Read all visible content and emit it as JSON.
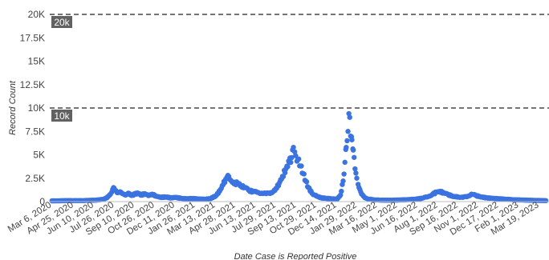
{
  "chart_data": {
    "type": "scatter",
    "xlabel": "Date Case is Reported Positive",
    "ylabel": "Record Count",
    "x_range": [
      "2020-03-01",
      "2023-04-10"
    ],
    "ylim": [
      0,
      20000
    ],
    "y_ticks": [
      0,
      2500,
      5000,
      7500,
      10000,
      12500,
      15000,
      17500,
      20000
    ],
    "y_tick_labels": [
      "0",
      "2.5K",
      "5K",
      "7.5K",
      "10K",
      "12.5K",
      "15K",
      "17.5K",
      "20K"
    ],
    "x_ticks": [
      "2020-03-06",
      "2020-04-25",
      "2020-06-10",
      "2020-07-26",
      "2020-09-10",
      "2020-10-26",
      "2020-12-11",
      "2021-01-26",
      "2021-03-13",
      "2021-04-28",
      "2021-06-13",
      "2021-07-29",
      "2021-09-13",
      "2021-10-29",
      "2021-12-14",
      "2022-01-29",
      "2022-03-16",
      "2022-05-01",
      "2022-06-16",
      "2022-08-01",
      "2022-09-16",
      "2022-11-01",
      "2022-12-17",
      "2023-02-01",
      "2023-03-19"
    ],
    "x_tick_labels": [
      "Mar 6, 2020",
      "Apr 25, 2020",
      "Jun 10, 2020",
      "Jul 26, 2020",
      "Sep 10, 2020",
      "Oct 26, 2020",
      "Dec 11, 2020",
      "Jan 26, 2021",
      "Mar 13, 2021",
      "Apr 28, 2021",
      "Jun 13, 2021",
      "Jul 29, 2021",
      "Sep 13, 2021",
      "Oct 29, 2021",
      "Dec 14, 2021",
      "Jan 29, 2022",
      "Mar 16, 2022",
      "May 1, 2022",
      "Jun 16, 2022",
      "Aug 1, 2022",
      "Sep 16, 2022",
      "Nov 1, 2022",
      "Dec 17, 2022",
      "Feb 1, 2023",
      "Mar 19, 2023"
    ],
    "reference_lines": [
      {
        "value": 20000,
        "label": "20k"
      },
      {
        "value": 10000,
        "label": "10k"
      }
    ],
    "grid": false,
    "point_color": "#3b73e0",
    "series": [
      {
        "points": [
          [
            "2020-03-06",
            80
          ],
          [
            "2020-03-25",
            90
          ],
          [
            "2020-04-15",
            110
          ],
          [
            "2020-05-05",
            100
          ],
          [
            "2020-05-25",
            120
          ],
          [
            "2020-06-15",
            160
          ],
          [
            "2020-07-01",
            250
          ],
          [
            "2020-07-10",
            450
          ],
          [
            "2020-07-17",
            800
          ],
          [
            "2020-07-22",
            1300
          ],
          [
            "2020-07-25",
            1450
          ],
          [
            "2020-07-29",
            1200
          ],
          [
            "2020-08-03",
            950
          ],
          [
            "2020-08-08",
            1050
          ],
          [
            "2020-08-14",
            850
          ],
          [
            "2020-08-20",
            700
          ],
          [
            "2020-08-27",
            900
          ],
          [
            "2020-09-03",
            650
          ],
          [
            "2020-09-10",
            800
          ],
          [
            "2020-09-18",
            900
          ],
          [
            "2020-09-25",
            700
          ],
          [
            "2020-10-03",
            850
          ],
          [
            "2020-10-12",
            650
          ],
          [
            "2020-10-20",
            800
          ],
          [
            "2020-10-28",
            600
          ],
          [
            "2020-11-08",
            450
          ],
          [
            "2020-11-20",
            500
          ],
          [
            "2020-12-01",
            400
          ],
          [
            "2020-12-12",
            450
          ],
          [
            "2020-12-24",
            350
          ],
          [
            "2021-01-06",
            300
          ],
          [
            "2021-01-20",
            330
          ],
          [
            "2021-02-03",
            280
          ],
          [
            "2021-02-17",
            250
          ],
          [
            "2021-03-01",
            320
          ],
          [
            "2021-03-13",
            600
          ],
          [
            "2021-03-22",
            1100
          ],
          [
            "2021-03-30",
            1800
          ],
          [
            "2021-04-05",
            2400
          ],
          [
            "2021-04-10",
            2800
          ],
          [
            "2021-04-16",
            2300
          ],
          [
            "2021-04-24",
            1900
          ],
          [
            "2021-05-02",
            2000
          ],
          [
            "2021-05-10",
            1700
          ],
          [
            "2021-05-18",
            1500
          ],
          [
            "2021-05-28",
            1200
          ],
          [
            "2021-06-06",
            1050
          ],
          [
            "2021-06-16",
            1000
          ],
          [
            "2021-06-26",
            900
          ],
          [
            "2021-07-06",
            850
          ],
          [
            "2021-07-16",
            950
          ],
          [
            "2021-07-26",
            1200
          ],
          [
            "2021-08-04",
            1900
          ],
          [
            "2021-08-12",
            2700
          ],
          [
            "2021-08-20",
            3500
          ],
          [
            "2021-08-27",
            4200
          ],
          [
            "2021-09-02",
            4700
          ],
          [
            "2021-09-06",
            5800
          ],
          [
            "2021-09-11",
            4900
          ],
          [
            "2021-09-16",
            4500
          ],
          [
            "2021-09-22",
            3800
          ],
          [
            "2021-09-28",
            3000
          ],
          [
            "2021-10-04",
            2200
          ],
          [
            "2021-10-10",
            1500
          ],
          [
            "2021-10-18",
            900
          ],
          [
            "2021-10-28",
            600
          ],
          [
            "2021-11-08",
            400
          ],
          [
            "2021-11-20",
            350
          ],
          [
            "2021-12-02",
            300
          ],
          [
            "2021-12-14",
            250
          ],
          [
            "2021-12-22",
            700
          ],
          [
            "2021-12-28",
            2200
          ],
          [
            "2022-01-01",
            4200
          ],
          [
            "2022-01-04",
            5800
          ],
          [
            "2022-01-06",
            6500
          ],
          [
            "2022-01-08",
            7500
          ],
          [
            "2022-01-10",
            9400
          ],
          [
            "2022-01-12",
            9000
          ],
          [
            "2022-01-14",
            7000
          ],
          [
            "2022-01-17",
            6600
          ],
          [
            "2022-01-20",
            5500
          ],
          [
            "2022-01-24",
            3500
          ],
          [
            "2022-01-28",
            2500
          ],
          [
            "2022-02-02",
            1500
          ],
          [
            "2022-02-08",
            800
          ],
          [
            "2022-02-16",
            400
          ],
          [
            "2022-02-26",
            250
          ],
          [
            "2022-03-10",
            180
          ],
          [
            "2022-03-25",
            160
          ],
          [
            "2022-04-12",
            150
          ],
          [
            "2022-05-01",
            170
          ],
          [
            "2022-05-20",
            200
          ],
          [
            "2022-06-08",
            250
          ],
          [
            "2022-06-25",
            350
          ],
          [
            "2022-07-10",
            550
          ],
          [
            "2022-07-20",
            800
          ],
          [
            "2022-07-28",
            1000
          ],
          [
            "2022-08-05",
            1100
          ],
          [
            "2022-08-14",
            900
          ],
          [
            "2022-08-24",
            750
          ],
          [
            "2022-09-04",
            550
          ],
          [
            "2022-09-16",
            500
          ],
          [
            "2022-09-26",
            450
          ],
          [
            "2022-10-06",
            550
          ],
          [
            "2022-10-16",
            800
          ],
          [
            "2022-10-26",
            650
          ],
          [
            "2022-11-06",
            500
          ],
          [
            "2022-11-20",
            400
          ],
          [
            "2022-12-04",
            350
          ],
          [
            "2022-12-18",
            300
          ],
          [
            "2023-01-03",
            250
          ],
          [
            "2023-01-20",
            200
          ],
          [
            "2023-02-05",
            180
          ],
          [
            "2023-02-22",
            150
          ],
          [
            "2023-03-06",
            130
          ],
          [
            "2023-03-20",
            120
          ],
          [
            "2023-04-03",
            100
          ]
        ]
      }
    ]
  }
}
